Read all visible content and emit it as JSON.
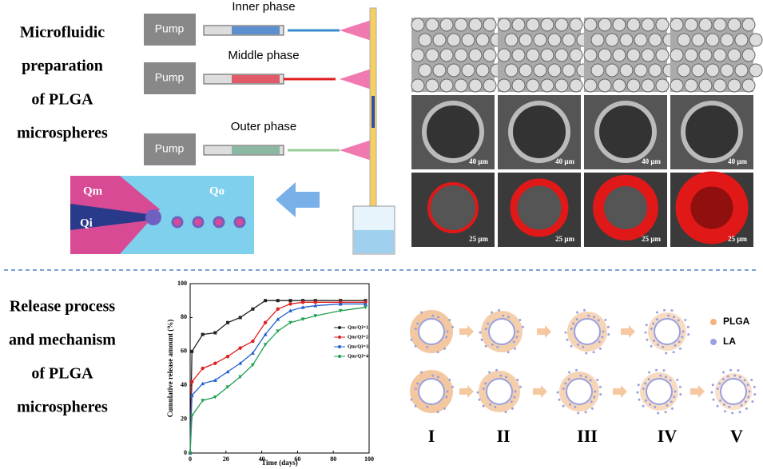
{
  "left_panel": {
    "top_heading": [
      "Microfluidic",
      "preparation",
      "of PLGA",
      "microspheres"
    ],
    "bottom_heading": [
      "Release process",
      "and mechanism",
      "of  PLGA",
      "microspheres"
    ]
  },
  "pumps": [
    "Pump",
    "Pump",
    "Pump"
  ],
  "phases": [
    "Inner phase",
    "Middle phase",
    "Outer phase"
  ],
  "channel_labels": [
    "Qm",
    "Qo",
    "Qi"
  ],
  "scale_bars": [
    "40 μm",
    "40 μm",
    "40 μm",
    "40 μm",
    "25 μm",
    "25 μm",
    "25 μm",
    "25 μm"
  ],
  "mechanism": {
    "legend": [
      "PLGA",
      "LA"
    ],
    "stages": [
      "I",
      "II",
      "III",
      "IV",
      "V"
    ]
  },
  "chart_data": {
    "type": "line",
    "x_label": "Time (days)",
    "y_label": "Cumulative release amount (%)",
    "x": [
      0,
      1,
      7,
      14,
      21,
      28,
      35,
      42,
      49,
      56,
      63,
      70,
      84,
      98
    ],
    "xlim": [
      0,
      100
    ],
    "xticks": [
      0,
      20,
      40,
      60,
      80,
      100
    ],
    "ylim": [
      0,
      100
    ],
    "yticks": [
      0,
      20,
      40,
      60,
      80,
      100
    ],
    "series": [
      {
        "name": "Qm/Qi=1",
        "color": "#222222",
        "marker": "square",
        "values": [
          0,
          60,
          70,
          71,
          77,
          80,
          85,
          90,
          90,
          90,
          90,
          90,
          90,
          90
        ]
      },
      {
        "name": "Qm/Qi=2",
        "color": "#e02020",
        "marker": "circle",
        "values": [
          0,
          42,
          50,
          53,
          57,
          62,
          66,
          77,
          85,
          88,
          89,
          89,
          89,
          89
        ]
      },
      {
        "name": "Qm/Qi=3",
        "color": "#2060d0",
        "marker": "triangle",
        "values": [
          0,
          34,
          41,
          43,
          48,
          53,
          59,
          70,
          79,
          84,
          86,
          87,
          88,
          88
        ]
      },
      {
        "name": "Qm/Qi=4",
        "color": "#20a050",
        "marker": "triangle-down",
        "values": [
          0,
          22,
          31,
          33,
          39,
          45,
          52,
          64,
          72,
          77,
          79,
          81,
          84,
          86
        ]
      }
    ]
  }
}
